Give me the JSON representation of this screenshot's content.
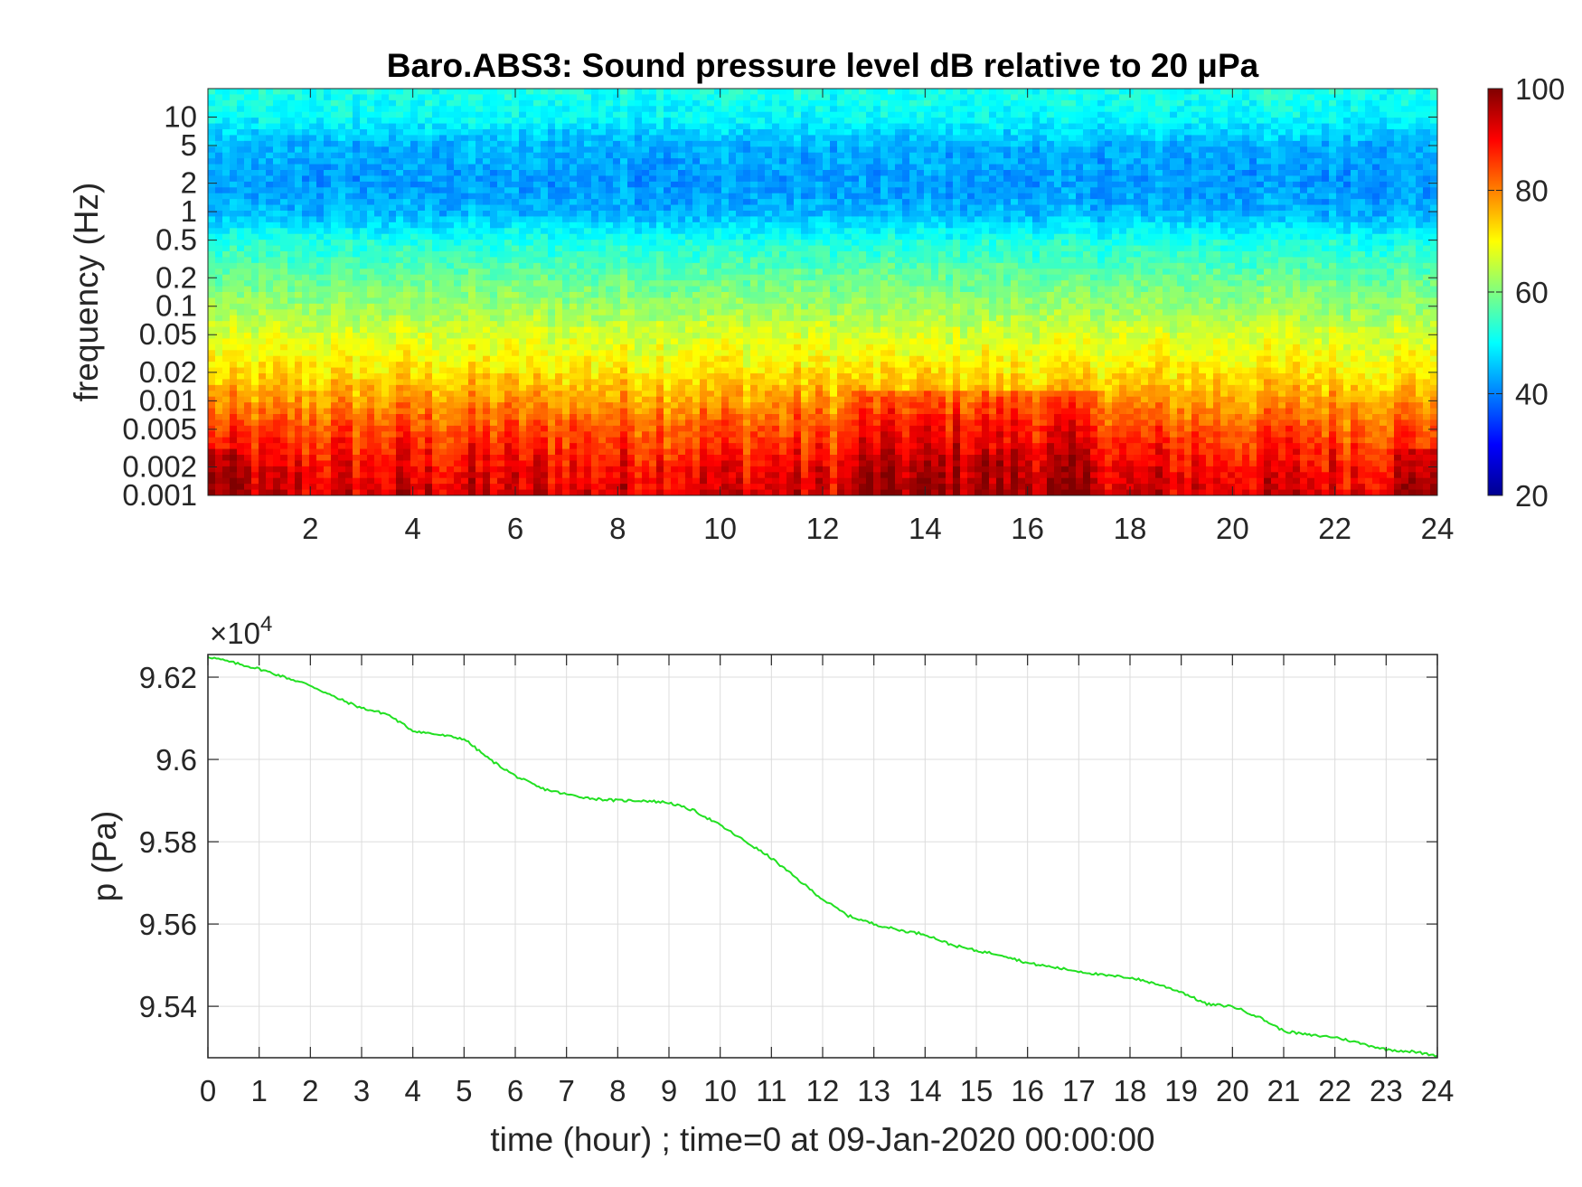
{
  "chart_data": [
    {
      "type": "heatmap",
      "title": "Baro.ABS3: Sound pressure level dB relative to 20 μPa",
      "ylabel": "frequency (Hz)",
      "xlabel": "",
      "x_ticks": [
        "2",
        "4",
        "6",
        "8",
        "10",
        "12",
        "14",
        "16",
        "18",
        "20",
        "22",
        "24"
      ],
      "y_ticks": [
        "10",
        "5",
        "2",
        "1",
        "0.5",
        "0.2",
        "0.1",
        "0.05",
        "0.02",
        "0.01",
        "0.005",
        "0.002",
        "0.001"
      ],
      "y_scale": "log",
      "xlim": [
        0,
        24
      ],
      "ylim": [
        0.001,
        20
      ],
      "colorbar": {
        "ticks": [
          "100",
          "80",
          "60",
          "40",
          "20"
        ],
        "range": [
          20,
          100
        ],
        "colormap": "jet"
      },
      "value_profile_by_frequency": [
        {
          "frequency_hz": 20,
          "db": 52
        },
        {
          "frequency_hz": 10,
          "db": 50
        },
        {
          "frequency_hz": 5,
          "db": 44
        },
        {
          "frequency_hz": 2,
          "db": 42
        },
        {
          "frequency_hz": 1,
          "db": 44
        },
        {
          "frequency_hz": 0.5,
          "db": 52
        },
        {
          "frequency_hz": 0.2,
          "db": 58
        },
        {
          "frequency_hz": 0.1,
          "db": 62
        },
        {
          "frequency_hz": 0.05,
          "db": 67
        },
        {
          "frequency_hz": 0.02,
          "db": 72
        },
        {
          "frequency_hz": 0.01,
          "db": 78
        },
        {
          "frequency_hz": 0.005,
          "db": 84
        },
        {
          "frequency_hz": 0.002,
          "db": 90
        },
        {
          "frequency_hz": 0.001,
          "db": 93
        }
      ]
    },
    {
      "type": "line",
      "xlabel": "time (hour) ; time=0 at 09-Jan-2020 00:00:00",
      "ylabel": "p (Pa)",
      "exponent_label": "×10",
      "exponent_power": "4",
      "x_ticks": [
        "0",
        "1",
        "2",
        "3",
        "4",
        "5",
        "6",
        "7",
        "8",
        "9",
        "10",
        "11",
        "12",
        "13",
        "14",
        "15",
        "16",
        "17",
        "18",
        "19",
        "20",
        "21",
        "22",
        "23",
        "24"
      ],
      "y_ticks": [
        "9.62",
        "9.6",
        "9.58",
        "9.56",
        "9.54"
      ],
      "xlim": [
        0,
        24
      ],
      "ylim": [
        95275,
        96255
      ],
      "grid": true,
      "line_color": "#22e022",
      "series": [
        {
          "x": [
            0,
            0.5,
            1,
            1.5,
            2,
            2.5,
            3,
            3.5,
            4,
            4.5,
            5,
            5.5,
            6,
            6.5,
            7,
            7.5,
            8,
            8.5,
            9,
            9.5,
            10,
            10.5,
            11,
            11.5,
            12,
            12.5,
            13,
            13.5,
            14,
            14.5,
            15,
            15.5,
            16,
            16.5,
            17,
            17.5,
            18,
            18.5,
            19,
            19.5,
            20,
            20.5,
            21,
            21.5,
            22,
            22.5,
            23,
            23.5,
            24
          ],
          "y": [
            96250,
            96235,
            96220,
            96200,
            96180,
            96150,
            96125,
            96110,
            96070,
            96060,
            96050,
            96000,
            95960,
            95930,
            95915,
            95905,
            95900,
            95900,
            95895,
            95875,
            95840,
            95800,
            95760,
            95710,
            95660,
            95620,
            95600,
            95585,
            95575,
            95550,
            95535,
            95525,
            95505,
            95495,
            95485,
            95475,
            95470,
            95455,
            95435,
            95405,
            95400,
            95375,
            95340,
            95330,
            95325,
            95310,
            95295,
            95290,
            95280
          ]
        }
      ]
    }
  ]
}
